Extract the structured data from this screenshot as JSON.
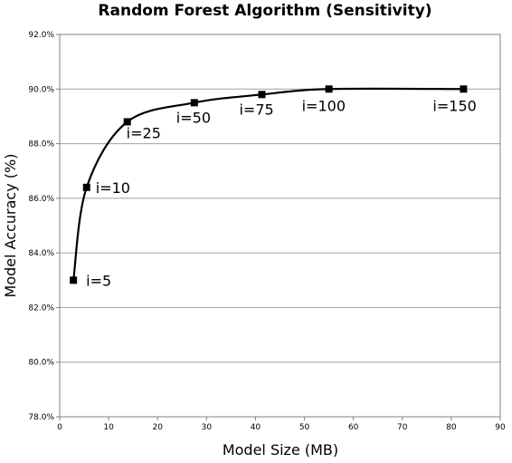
{
  "chart_data": {
    "type": "line",
    "title": "Random Forest Algorithm (Sensitivity)",
    "xlabel": "Model Size (MB)",
    "ylabel": "Model Accuracy (%)",
    "xlim": [
      0,
      90
    ],
    "ylim": [
      78.0,
      92.0
    ],
    "x_ticks": [
      0,
      10,
      20,
      30,
      40,
      50,
      60,
      70,
      80,
      90
    ],
    "y_ticks": [
      78.0,
      80.0,
      82.0,
      84.0,
      86.0,
      88.0,
      90.0,
      92.0
    ],
    "y_tick_suffix": "%",
    "grid": "horizontal",
    "legend": "none",
    "series": [
      {
        "points": [
          {
            "x": 2.8,
            "y": 83.0,
            "label": "i=5"
          },
          {
            "x": 5.5,
            "y": 86.4,
            "label": "i=10"
          },
          {
            "x": 13.8,
            "y": 88.8,
            "label": "i=25"
          },
          {
            "x": 27.5,
            "y": 89.5,
            "label": "i=50"
          },
          {
            "x": 41.3,
            "y": 89.8,
            "label": "i=75"
          },
          {
            "x": 55.0,
            "y": 90.0,
            "label": "i=100"
          },
          {
            "x": 82.5,
            "y": 90.0,
            "label": "i=150"
          }
        ]
      }
    ]
  }
}
